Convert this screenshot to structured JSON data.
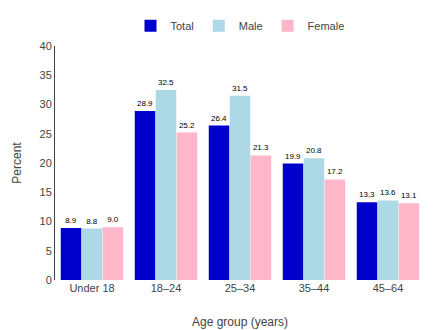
{
  "chart_data": {
    "type": "bar",
    "xlabel": "Age group (years)",
    "ylabel": "Percent",
    "categories": [
      "Under 18",
      "18–24",
      "25–34",
      "35–44",
      "45–64"
    ],
    "series": [
      {
        "name": "Total",
        "color": "#0000CC",
        "values": [
          8.9,
          28.9,
          26.4,
          19.9,
          13.3
        ],
        "value_labels": [
          "8.9",
          "28.9",
          "26.4",
          "19.9",
          "13.3"
        ]
      },
      {
        "name": "Male",
        "color": "#ADD8E6",
        "values": [
          8.8,
          32.5,
          31.5,
          20.8,
          13.6
        ],
        "value_labels": [
          "8.8",
          "32.5",
          "31.5",
          "20.8",
          "13.6"
        ]
      },
      {
        "name": "Female",
        "color": "#FFB6C8",
        "values": [
          9.0,
          25.2,
          21.3,
          17.2,
          13.1
        ],
        "value_labels": [
          "9.0",
          "25.2",
          "21.3",
          "17.2",
          "13.1"
        ]
      }
    ],
    "ylim": [
      0,
      40
    ],
    "yticks": [
      0,
      5,
      10,
      15,
      20,
      25,
      30,
      35,
      40
    ],
    "grid": false,
    "legend": "top",
    "data_labels": true
  }
}
